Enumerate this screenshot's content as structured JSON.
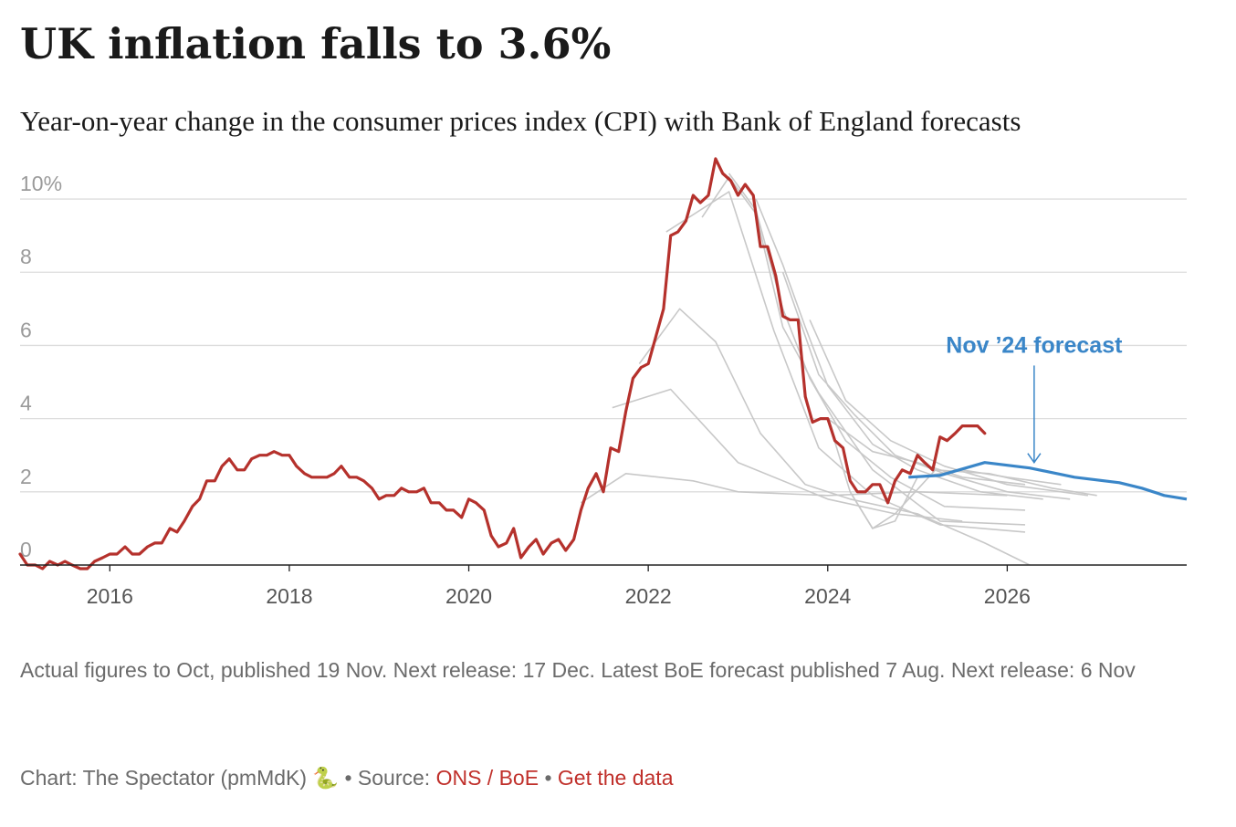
{
  "title": "UK inflation falls to 3.6%",
  "subtitle": "Year-on-year change in the consumer prices index (CPI) with Bank of England forecasts",
  "notes": "Actual figures to Oct, published 19 Nov. Next release: 17 Dec. Latest BoE forecast published 7 Aug. Next release: 6 Nov",
  "footer": {
    "credit": "Chart: The Spectator (pmMdK)",
    "snake_icon": "🐍",
    "separator": "•",
    "source_label": "Source:",
    "source_link": "ONS / BoE",
    "data_link": "Get the data"
  },
  "colors": {
    "actual": "#b5312c",
    "forecast_latest": "#3a86c8",
    "forecast_past": "#c8c8c8",
    "grid": "#dddddd",
    "axis": "#222222",
    "link": "#c0302b"
  },
  "chart_data": {
    "type": "line",
    "ylim": [
      0,
      10.5
    ],
    "xlim": [
      2015.0,
      2028.0
    ],
    "grid": true,
    "y_ticks": [
      {
        "value": 0,
        "label": "0"
      },
      {
        "value": 2,
        "label": "2"
      },
      {
        "value": 4,
        "label": "4"
      },
      {
        "value": 6,
        "label": "6"
      },
      {
        "value": 8,
        "label": "8"
      },
      {
        "value": 10,
        "label": "10%"
      }
    ],
    "x_ticks": [
      {
        "value": 2016,
        "label": "2016"
      },
      {
        "value": 2018,
        "label": "2018"
      },
      {
        "value": 2020,
        "label": "2020"
      },
      {
        "value": 2022,
        "label": "2022"
      },
      {
        "value": 2024,
        "label": "2024"
      },
      {
        "value": 2026,
        "label": "2026"
      }
    ],
    "annotations": [
      {
        "text": "Nov ’24 forecast",
        "x": 2026.3,
        "y": 6.0,
        "arrow_to": [
          2026.3,
          2.8
        ]
      }
    ],
    "series": [
      {
        "role": "actual",
        "x": [
          2015.0,
          2015.08,
          2015.17,
          2015.25,
          2015.33,
          2015.42,
          2015.5,
          2015.58,
          2015.67,
          2015.75,
          2015.83,
          2015.92,
          2016.0,
          2016.08,
          2016.17,
          2016.25,
          2016.33,
          2016.42,
          2016.5,
          2016.58,
          2016.67,
          2016.75,
          2016.83,
          2016.92,
          2017.0,
          2017.08,
          2017.17,
          2017.25,
          2017.33,
          2017.42,
          2017.5,
          2017.58,
          2017.67,
          2017.75,
          2017.83,
          2017.92,
          2018.0,
          2018.08,
          2018.17,
          2018.25,
          2018.33,
          2018.42,
          2018.5,
          2018.58,
          2018.67,
          2018.75,
          2018.83,
          2018.92,
          2019.0,
          2019.08,
          2019.17,
          2019.25,
          2019.33,
          2019.42,
          2019.5,
          2019.58,
          2019.67,
          2019.75,
          2019.83,
          2019.92,
          2020.0,
          2020.08,
          2020.17,
          2020.25,
          2020.33,
          2020.42,
          2020.5,
          2020.58,
          2020.67,
          2020.75,
          2020.83,
          2020.92,
          2021.0,
          2021.08,
          2021.17,
          2021.25,
          2021.33,
          2021.42,
          2021.5,
          2021.58,
          2021.67,
          2021.75,
          2021.83,
          2021.92,
          2022.0,
          2022.08,
          2022.17,
          2022.25,
          2022.33,
          2022.42,
          2022.5,
          2022.58,
          2022.67,
          2022.75,
          2022.83,
          2022.92,
          2023.0,
          2023.08,
          2023.17,
          2023.25,
          2023.33,
          2023.42,
          2023.5,
          2023.58,
          2023.67,
          2023.75,
          2023.83,
          2023.92,
          2024.0,
          2024.08,
          2024.17,
          2024.25,
          2024.33,
          2024.42,
          2024.5,
          2024.58,
          2024.67,
          2024.75,
          2024.83,
          2024.92,
          2025.0,
          2025.08,
          2025.17,
          2025.25,
          2025.33,
          2025.42,
          2025.5,
          2025.58,
          2025.67,
          2025.75
        ],
        "values": [
          0.3,
          0.0,
          0.0,
          -0.1,
          0.1,
          0.0,
          0.1,
          0.0,
          -0.1,
          -0.1,
          0.1,
          0.2,
          0.3,
          0.3,
          0.5,
          0.3,
          0.3,
          0.5,
          0.6,
          0.6,
          1.0,
          0.9,
          1.2,
          1.6,
          1.8,
          2.3,
          2.3,
          2.7,
          2.9,
          2.6,
          2.6,
          2.9,
          3.0,
          3.0,
          3.1,
          3.0,
          3.0,
          2.7,
          2.5,
          2.4,
          2.4,
          2.4,
          2.5,
          2.7,
          2.4,
          2.4,
          2.3,
          2.1,
          1.8,
          1.9,
          1.9,
          2.1,
          2.0,
          2.0,
          2.1,
          1.7,
          1.7,
          1.5,
          1.5,
          1.3,
          1.8,
          1.7,
          1.5,
          0.8,
          0.5,
          0.6,
          1.0,
          0.2,
          0.5,
          0.7,
          0.3,
          0.6,
          0.7,
          0.4,
          0.7,
          1.5,
          2.1,
          2.5,
          2.0,
          3.2,
          3.1,
          4.2,
          5.1,
          5.4,
          5.5,
          6.2,
          7.0,
          9.0,
          9.1,
          9.4,
          10.1,
          9.9,
          10.1,
          11.1,
          10.7,
          10.5,
          10.1,
          10.4,
          10.1,
          8.7,
          8.7,
          7.9,
          6.8,
          6.7,
          6.7,
          4.6,
          3.9,
          4.0,
          4.0,
          3.4,
          3.2,
          2.3,
          2.0,
          2.0,
          2.2,
          2.2,
          1.7,
          2.3,
          2.6,
          2.5,
          3.0,
          2.8,
          2.6,
          3.5,
          3.4,
          3.6,
          3.8,
          3.8,
          3.8,
          3.6
        ]
      },
      {
        "role": "forecast_latest",
        "name": "Nov ’24 forecast",
        "x": [
          2024.9,
          2025.25,
          2025.75,
          2026.25,
          2026.75,
          2027.25,
          2027.5,
          2027.75,
          2028.0
        ],
        "values": [
          2.4,
          2.45,
          2.8,
          2.65,
          2.4,
          2.25,
          2.1,
          1.9,
          1.8
        ]
      },
      {
        "role": "forecast_past",
        "x": [
          2021.25,
          2021.75,
          2022.5,
          2023.0,
          2024.0,
          2025.0,
          2026.0
        ],
        "values": [
          1.7,
          2.5,
          2.3,
          2.0,
          1.9,
          2.0,
          1.9
        ]
      },
      {
        "role": "forecast_past",
        "x": [
          2021.6,
          2022.25,
          2023.0,
          2024.0,
          2024.75,
          2025.5
        ],
        "values": [
          4.3,
          4.8,
          2.8,
          1.8,
          1.4,
          1.2
        ]
      },
      {
        "role": "forecast_past",
        "x": [
          2021.9,
          2022.35,
          2022.75,
          2023.25,
          2023.75,
          2024.25,
          2025.0,
          2025.75,
          2026.25
        ],
        "values": [
          5.5,
          7.0,
          6.1,
          3.6,
          2.2,
          1.8,
          1.4,
          0.6,
          0.0
        ]
      },
      {
        "role": "forecast_past",
        "x": [
          2022.2,
          2022.9,
          2023.4,
          2023.9,
          2024.5,
          2025.25,
          2026.2
        ],
        "values": [
          9.1,
          10.2,
          6.4,
          3.2,
          1.9,
          1.1,
          0.9
        ]
      },
      {
        "role": "forecast_past",
        "x": [
          2022.6,
          2022.9,
          2023.2,
          2023.5,
          2023.9,
          2024.5,
          2025.25,
          2026.2
        ],
        "values": [
          9.5,
          10.6,
          9.6,
          6.5,
          4.7,
          2.6,
          1.2,
          1.1
        ]
      },
      {
        "role": "forecast_past",
        "x": [
          2022.9,
          2023.2,
          2023.5,
          2023.8,
          2024.2,
          2024.7,
          2025.3,
          2026.2
        ],
        "values": [
          10.7,
          9.7,
          7.0,
          5.1,
          3.4,
          2.4,
          1.6,
          1.5
        ]
      },
      {
        "role": "forecast_past",
        "x": [
          2023.2,
          2023.5,
          2023.75,
          2024.0,
          2024.5,
          2025.0,
          2025.7,
          2026.4
        ],
        "values": [
          10.0,
          8.2,
          6.5,
          4.9,
          3.3,
          2.6,
          2.0,
          1.8
        ]
      },
      {
        "role": "forecast_past",
        "x": [
          2023.5,
          2023.9,
          2024.3,
          2024.75,
          2025.3,
          2026.0,
          2026.7
        ],
        "values": [
          8.0,
          5.2,
          4.1,
          3.0,
          2.5,
          2.0,
          1.8
        ]
      },
      {
        "role": "forecast_past",
        "x": [
          2023.8,
          2024.2,
          2024.7,
          2025.3,
          2026.0,
          2026.9
        ],
        "values": [
          6.7,
          4.5,
          3.4,
          2.7,
          2.2,
          1.9
        ]
      },
      {
        "role": "forecast_past",
        "x": [
          2024.0,
          2024.5,
          2025.0,
          2025.5,
          2026.2
        ],
        "values": [
          4.0,
          3.1,
          2.8,
          2.4,
          2.2
        ]
      },
      {
        "role": "forecast_past",
        "x": [
          2024.0,
          2024.25,
          2024.5,
          2024.75,
          2025.0,
          2025.5,
          2026.0,
          2026.6
        ],
        "values": [
          4.0,
          2.0,
          1.0,
          1.2,
          2.4,
          2.6,
          2.4,
          2.2
        ]
      },
      {
        "role": "forecast_past",
        "x": [
          2024.25,
          2024.5,
          2024.75,
          2025.2,
          2025.8,
          2026.5,
          2027.0
        ],
        "values": [
          2.0,
          1.0,
          1.4,
          2.6,
          2.5,
          2.1,
          1.9
        ]
      }
    ]
  }
}
